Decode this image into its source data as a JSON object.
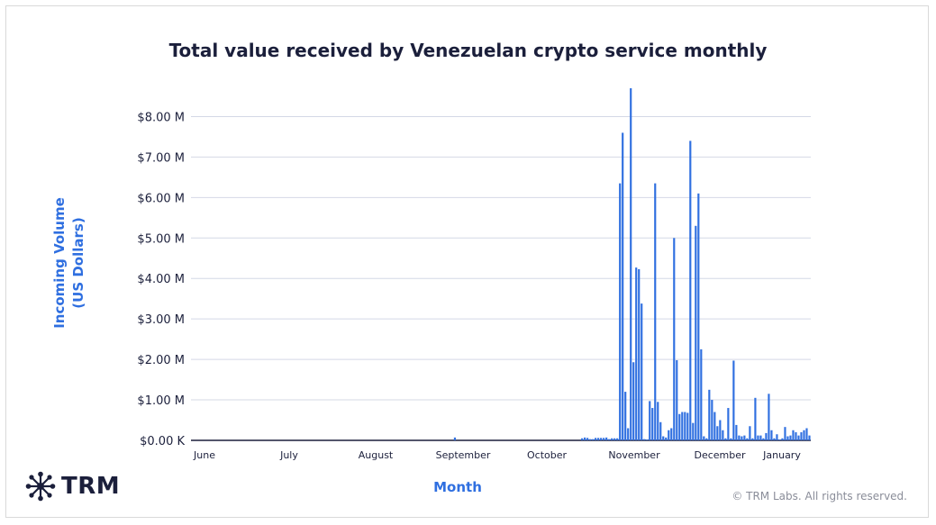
{
  "chart_data": {
    "type": "bar",
    "title": "Total value received by Venezuelan crypto service monthly",
    "ylabel_lines": [
      "Incoming Volume",
      "(US Dollars)"
    ],
    "xlabel": "Month",
    "ylim": [
      0,
      8.7
    ],
    "yticks": [
      {
        "value": 0,
        "label": "$0.00 K"
      },
      {
        "value": 1,
        "label": "$1.00 M"
      },
      {
        "value": 2,
        "label": "$2.00 M"
      },
      {
        "value": 3,
        "label": "$3.00 M"
      },
      {
        "value": 4,
        "label": "$4.00 M"
      },
      {
        "value": 5,
        "label": "$5.00 M"
      },
      {
        "value": 6,
        "label": "$6.00 M"
      },
      {
        "value": 7,
        "label": "$7.00 M"
      },
      {
        "value": 8,
        "label": "$8.00 M"
      }
    ],
    "months": [
      "June",
      "July",
      "August",
      "September",
      "October",
      "November",
      "December",
      "January"
    ],
    "bar_color": "#2f6fe0",
    "gridline_color": "#d4d8e6",
    "series": [
      {
        "values_musd": [
          0,
          0,
          0,
          0,
          0,
          0,
          0,
          0,
          0,
          0,
          0,
          0,
          0,
          0,
          0,
          0,
          0,
          0,
          0,
          0,
          0,
          0,
          0,
          0,
          0,
          0,
          0,
          0,
          0,
          0,
          0,
          0,
          0,
          0,
          0,
          0,
          0,
          0,
          0,
          0,
          0,
          0,
          0,
          0,
          0,
          0,
          0,
          0,
          0,
          0,
          0,
          0,
          0,
          0,
          0,
          0,
          0,
          0,
          0,
          0,
          0,
          0,
          0,
          0,
          0,
          0,
          0,
          0,
          0,
          0,
          0,
          0,
          0,
          0,
          0,
          0,
          0,
          0,
          0,
          0,
          0,
          0,
          0,
          0,
          0,
          0,
          0,
          0,
          0,
          0,
          0,
          0,
          0,
          0,
          0,
          0,
          0,
          0.07,
          0,
          0,
          0,
          0,
          0,
          0,
          0,
          0,
          0,
          0,
          0,
          0,
          0,
          0,
          0,
          0,
          0,
          0,
          0,
          0,
          0,
          0,
          0,
          0,
          0,
          0,
          0,
          0,
          0,
          0,
          0,
          0,
          0,
          0,
          0,
          0,
          0,
          0,
          0,
          0,
          0,
          0,
          0,
          0,
          0,
          0,
          0.05,
          0.07,
          0.06,
          0.03,
          0.03,
          0.06,
          0.06,
          0.06,
          0.06,
          0.07,
          0.03,
          0.05,
          0.05,
          0.05,
          6.35,
          7.6,
          1.2,
          0.3,
          8.7,
          1.93,
          4.27,
          4.23,
          3.38,
          0.03,
          0.02,
          0.97,
          0.8,
          6.35,
          0.95,
          0.45,
          0.1,
          0.07,
          0.25,
          0.3,
          5.0,
          1.98,
          0.65,
          0.7,
          0.7,
          0.68,
          7.4,
          0.43,
          5.3,
          6.1,
          2.25,
          0.1,
          0.05,
          1.25,
          1.0,
          0.7,
          0.35,
          0.5,
          0.25,
          0.05,
          0.8,
          0.05,
          1.97,
          0.38,
          0.12,
          0.1,
          0.12,
          0.05,
          0.35,
          0.05,
          1.05,
          0.12,
          0.12,
          0.05,
          0.18,
          1.15,
          0.25,
          0.05,
          0.15,
          0.02,
          0.05,
          0.33,
          0.1,
          0.12,
          0.25,
          0.2,
          0.12,
          0.2,
          0.25,
          0.3,
          0.12
        ]
      }
    ]
  },
  "logo": {
    "text": "TRM"
  },
  "footer": {
    "copyright": "© TRM Labs. All rights reserved."
  }
}
